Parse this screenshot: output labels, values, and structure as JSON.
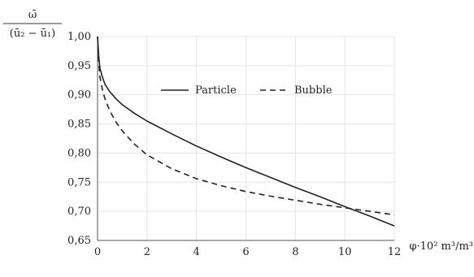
{
  "chart_data": {
    "type": "line",
    "xlabel": "φ·10² m³/m³",
    "ylabel": {
      "numerator": "ω̄",
      "denominator": "(ū₂ − ū₁)"
    },
    "xlim": [
      0,
      12
    ],
    "ylim": [
      0.65,
      1.0
    ],
    "x_ticks": [
      "0",
      "2",
      "4",
      "6",
      "8",
      "10",
      "12"
    ],
    "y_ticks": [
      "0,65",
      "0,70",
      "0,75",
      "0,80",
      "0,85",
      "0,90",
      "0,95",
      "1,00"
    ],
    "grid": true,
    "legend_position": "top-center",
    "series": [
      {
        "name": "Particle",
        "style": "solid",
        "color": "#222222",
        "x": [
          0,
          0.05,
          0.1,
          0.2,
          0.3,
          0.5,
          0.75,
          1,
          1.5,
          2,
          3,
          4,
          5,
          6,
          7,
          8,
          9,
          10,
          11,
          12
        ],
        "y": [
          1.0,
          0.965,
          0.945,
          0.93,
          0.918,
          0.905,
          0.893,
          0.883,
          0.868,
          0.855,
          0.833,
          0.812,
          0.793,
          0.775,
          0.758,
          0.741,
          0.725,
          0.708,
          0.692,
          0.675
        ]
      },
      {
        "name": "Bubble",
        "style": "dashed",
        "color": "#222222",
        "x": [
          0,
          0.05,
          0.1,
          0.2,
          0.3,
          0.5,
          0.75,
          1,
          1.5,
          2,
          3,
          4,
          5,
          6,
          7,
          8,
          9,
          10,
          11,
          12
        ],
        "y": [
          1.0,
          0.955,
          0.93,
          0.908,
          0.893,
          0.872,
          0.853,
          0.838,
          0.815,
          0.797,
          0.773,
          0.756,
          0.744,
          0.734,
          0.726,
          0.719,
          0.712,
          0.706,
          0.7,
          0.694
        ]
      }
    ]
  }
}
